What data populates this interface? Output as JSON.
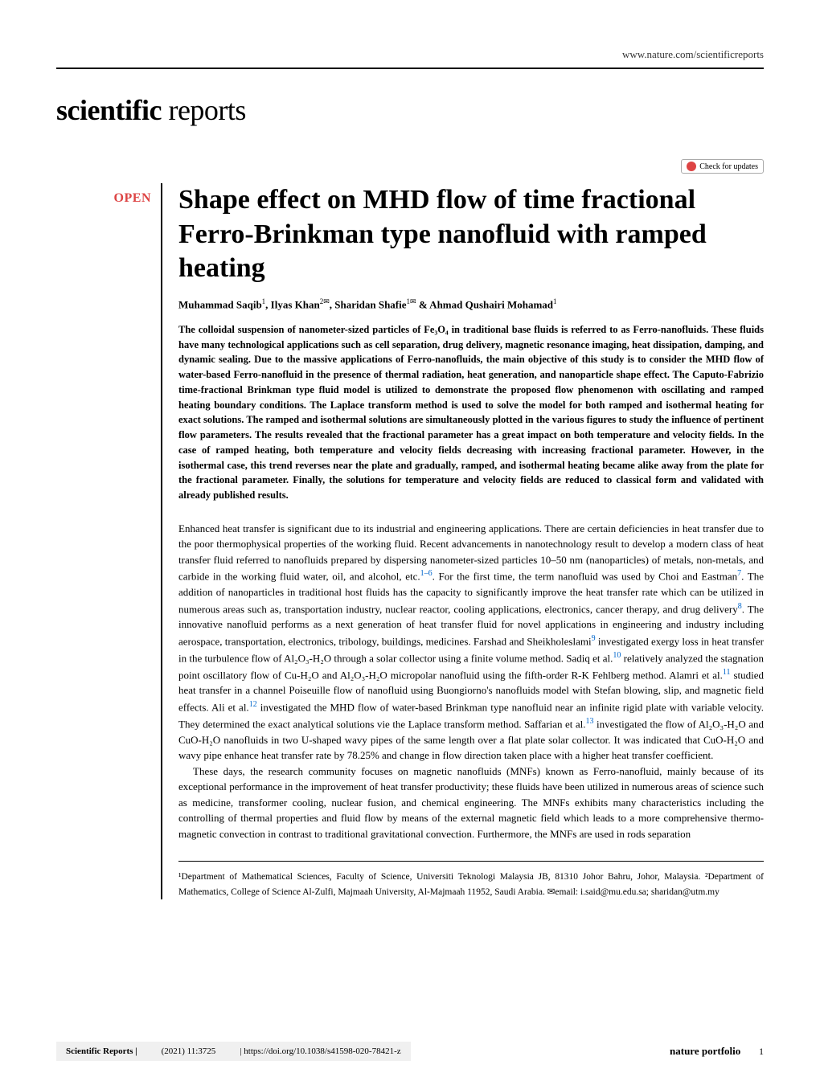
{
  "header": {
    "url": "www.nature.com/scientificreports"
  },
  "journal": {
    "logo_bold": "scientific",
    "logo_light": " reports"
  },
  "badges": {
    "check_updates": "Check for updates",
    "open": "OPEN"
  },
  "article": {
    "title": "Shape effect on MHD flow of time fractional Ferro-Brinkman type nanofluid with ramped heating",
    "authors_html": "Muhammad Saqib<sup>1</sup>, Ilyas Khan<sup>2✉</sup>, Sharidan Shafie<sup>1✉</sup> & Ahmad Qushairi Mohamad<sup>1</sup>",
    "abstract": "The colloidal suspension of nanometer-sized particles of Fe₃O₄ in traditional base fluids is referred to as Ferro-nanofluids. These fluids have many technological applications such as cell separation, drug delivery, magnetic resonance imaging, heat dissipation, damping, and dynamic sealing. Due to the massive applications of Ferro-nanofluids, the main objective of this study is to consider the MHD flow of water-based Ferro-nanofluid in the presence of thermal radiation, heat generation, and nanoparticle shape effect. The Caputo-Fabrizio time-fractional Brinkman type fluid model is utilized to demonstrate the proposed flow phenomenon with oscillating and ramped heating boundary conditions. The Laplace transform method is used to solve the model for both ramped and isothermal heating for exact solutions. The ramped and isothermal solutions are simultaneously plotted in the various figures to study the influence of pertinent flow parameters. The results revealed that the fractional parameter has a great impact on both temperature and velocity fields. In the case of ramped heating, both temperature and velocity fields decreasing with increasing fractional parameter. However, in the isothermal case, this trend reverses near the plate and gradually, ramped, and isothermal heating became alike away from the plate for the fractional parameter. Finally, the solutions for temperature and velocity fields are reduced to classical form and validated with already published results."
  },
  "body": {
    "para1_pre": "Enhanced heat transfer is significant due to its industrial and engineering applications. There are certain deficiencies in heat transfer due to the poor thermophysical properties of the working fluid. Recent advancements in nanotechnology result to develop a modern class of heat transfer fluid referred to nanofluids prepared by dispersing nanometer-sized particles 10–50 nm (nanoparticles) of metals, non-metals, and carbide in the working fluid water, oil, and alcohol, etc.",
    "cite1": "1–6",
    "para1_mid1": ". For the first time, the term nanofluid was used by Choi and Eastman",
    "cite2": "7",
    "para1_mid2": ". The addition of nanoparticles in traditional host fluids has the capacity to significantly improve the heat transfer rate which can be utilized in numerous areas such as, transportation industry, nuclear reactor, cooling applications, electronics, cancer therapy, and drug delivery",
    "cite3": "8",
    "para1_mid3": ". The innovative nanofluid performs as a next generation of heat transfer fluid for novel applications in engineering and industry including aerospace, transportation, electronics, tribology, buildings, medicines. Farshad and Sheikholeslami",
    "cite4": "9",
    "para1_mid4": " investigated exergy loss in heat transfer in the turbulence flow of Al₂O₃-H₂O through a solar collector using a finite volume method. Sadiq et al.",
    "cite5": "10",
    "para1_mid5": " relatively analyzed the stagnation point oscillatory flow of Cu-H₂O and Al₂O₃-H₂O micropolar nanofluid using the fifth-order R-K Fehlberg method. Alamri et al.",
    "cite6": "11",
    "para1_mid6": " studied heat transfer in a channel Poiseuille flow of nanofluid using Buongiorno's nanofluids model with Stefan blowing, slip, and magnetic field effects. Ali et al.",
    "cite7": "12",
    "para1_mid7": " investigated the MHD flow of water-based Brinkman type nanofluid near an infinite rigid plate with variable velocity. They determined the exact analytical solutions vie the Laplace transform method. Saffarian et al.",
    "cite8": "13",
    "para1_end": " investigated the flow of Al₂O₃-H₂O and CuO-H₂O nanofluids in two U-shaped wavy pipes of the same length over a flat plate solar collector. It was indicated that CuO-H₂O and wavy pipe enhance heat transfer rate by 78.25% and change in flow direction taken place with a higher heat transfer coefficient.",
    "para2": "These days, the research community focuses on magnetic nanofluids (MNFs) known as Ferro-nanofluid, mainly because of its exceptional performance in the improvement of heat transfer productivity; these fluids have been utilized in numerous areas of science such as medicine, transformer cooling, nuclear fusion, and chemical engineering. The MNFs exhibits many characteristics including the controlling of thermal properties and fluid flow by means of the external magnetic field which leads to a more comprehensive thermo-magnetic convection in contrast to traditional gravitational convection. Furthermore, the MNFs are used in rods separation"
  },
  "affiliations": "¹Department of Mathematical Sciences, Faculty of Science, Universiti Teknologi Malaysia JB, 81310 Johor Bahru, Johor, Malaysia. ²Department of Mathematics, College of Science Al-Zulfi, Majmaah University, Al-Majmaah 11952, Saudi Arabia. ✉email: i.said@mu.edu.sa; sharidan@utm.my",
  "footer": {
    "journal": "Scientific Reports |",
    "citation": "(2021) 11:3725",
    "doi": "| https://doi.org/10.1038/s41598-020-78421-z",
    "publisher": "nature portfolio",
    "page": "1"
  },
  "colors": {
    "text": "#000000",
    "link": "#0066cc",
    "open_badge": "#d44",
    "footer_bg": "#f0f0f0"
  }
}
